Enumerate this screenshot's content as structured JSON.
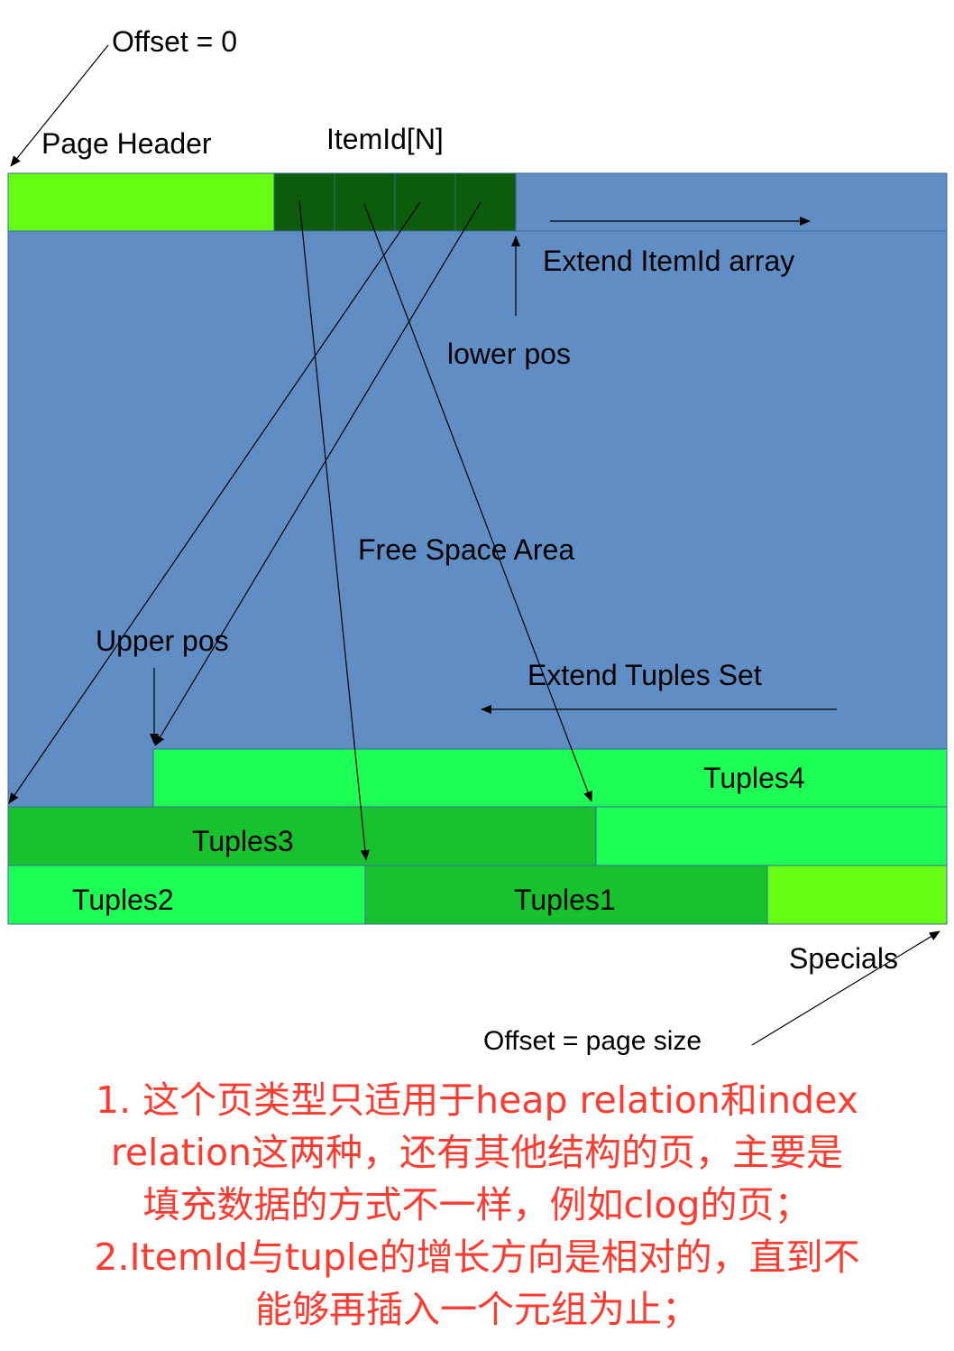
{
  "labels": {
    "offset_zero": "Offset = 0",
    "page_header": "Page Header",
    "itemid_array": "ItemId[N]",
    "extend_itemid": "Extend ItemId array",
    "lower_pos": "lower pos",
    "free_space": "Free Space Area",
    "upper_pos": "Upper pos",
    "extend_tuples": "Extend Tuples Set",
    "tuples4": "Tuples4",
    "tuples3": "Tuples3",
    "tuples2": "Tuples2",
    "tuples1": "Tuples1",
    "specials": "Specials",
    "offset_page_size": "Offset = page size"
  },
  "notes": [
    "1. 这个页类型只适用于heap relation和index",
    "relation这两种，还有其他结构的页，主要是",
    "填充数据的方式不一样，例如clog的页；",
    "2.ItemId与tuple的增长方向是相对的，直到不",
    "能够再插入一个元组为止；"
  ],
  "colors": {
    "free_space": "#5f8dc4",
    "page_header": "#66ff14",
    "itemid_cell": "#0c5c0c",
    "tuple_light": "#1eff55",
    "tuple_dark": "#18c22e",
    "specials": "#66ff14",
    "note_text": "#ff3b30"
  }
}
